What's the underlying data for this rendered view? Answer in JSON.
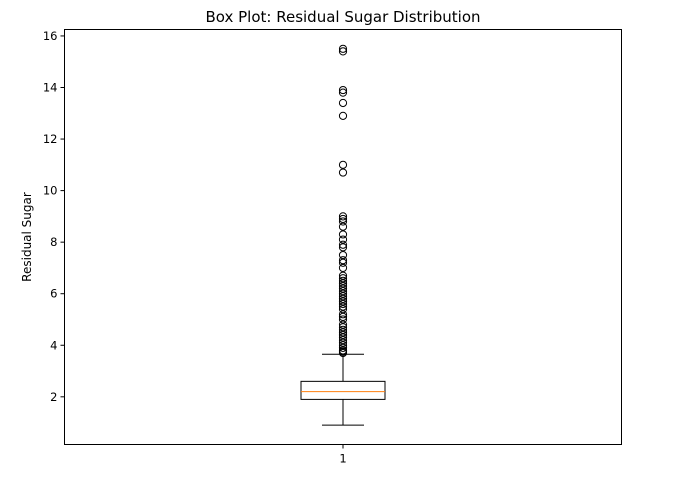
{
  "chart_data": {
    "type": "box",
    "title": "Box Plot: Residual Sugar Distribution",
    "xlabel": "",
    "ylabel": "Residual Sugar",
    "categories": [
      "1"
    ],
    "ylim": [
      0.15,
      16.25
    ],
    "yticks": [
      2,
      4,
      6,
      8,
      10,
      12,
      14,
      16
    ],
    "grid": false,
    "box": {
      "whisker_low": 0.9,
      "q1": 1.9,
      "median": 2.2,
      "q3": 2.6,
      "whisker_high": 3.65
    },
    "outliers": [
      15.5,
      15.4,
      13.9,
      13.8,
      13.4,
      12.9,
      11.0,
      10.7,
      9.0,
      8.9,
      8.8,
      8.6,
      8.3,
      8.1,
      7.9,
      7.8,
      7.5,
      7.3,
      7.2,
      7.0,
      6.7,
      6.6,
      6.5,
      6.4,
      6.3,
      6.2,
      6.1,
      6.0,
      5.9,
      5.8,
      5.7,
      5.6,
      5.5,
      5.4,
      5.2,
      5.1,
      5.0,
      4.8,
      4.7,
      4.6,
      4.5,
      4.4,
      4.3,
      4.2,
      4.1,
      4.0,
      3.9,
      3.8,
      3.75,
      3.7
    ],
    "colors": {
      "box": "#000000",
      "median": "#ff7f0e",
      "outlier": "#000000"
    }
  }
}
